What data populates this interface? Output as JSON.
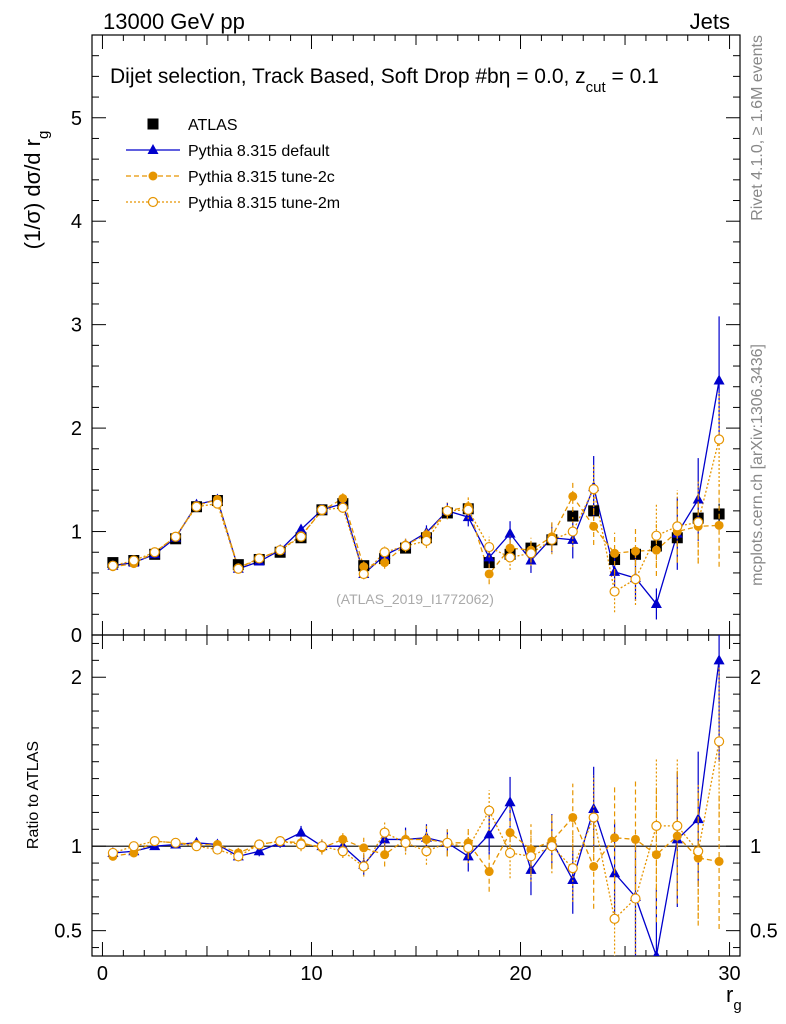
{
  "header": {
    "energy_label": "13000 GeV pp",
    "category_label": "Jets"
  },
  "side_notes": {
    "rivet": "Rivet 4.1.0, ≥ 1.6M events",
    "mcplots": "mcplots.cern.ch [arXiv:1306.3436]"
  },
  "analysis_id": "(ATLAS_2019_I1772062)",
  "colors": {
    "data": "#000000",
    "default": "#0000cc",
    "tune2c": "#e69500",
    "tune2m": "#e69500",
    "reference_line": "#000000"
  },
  "chart_data": [
    {
      "type": "scatter",
      "panel": "main",
      "title": "Dijet selection, Track Based, Soft Drop #b",
      "title_eta": "η = 0.0, z",
      "title_zcut_sub": "cut",
      "title_zcut_value": " = 0.1",
      "ylabel": "(1/σ) dσ/d r",
      "ylabel_sub": "g",
      "xlim": [
        -0.5,
        30.5
      ],
      "ylim": [
        0,
        5.8
      ],
      "yticks": [
        0,
        1,
        2,
        3,
        4,
        5
      ],
      "x": [
        0.5,
        1.5,
        2.5,
        3.5,
        4.5,
        5.5,
        6.5,
        7.5,
        8.5,
        9.5,
        10.5,
        11.5,
        12.5,
        13.5,
        14.5,
        15.5,
        16.5,
        17.5,
        18.5,
        19.5,
        20.5,
        21.5,
        22.5,
        23.5,
        24.5,
        25.5,
        26.5,
        27.5,
        28.5,
        29.5
      ],
      "legend": [
        "ATLAS",
        "Pythia 8.315 default",
        "Pythia 8.315 tune-2c",
        "Pythia 8.315 tune-2m"
      ],
      "series": [
        {
          "name": "ATLAS",
          "style": "data",
          "values": [
            0.7,
            0.72,
            0.78,
            0.93,
            1.24,
            1.3,
            0.68,
            0.73,
            0.8,
            0.94,
            1.21,
            1.27,
            0.67,
            0.74,
            0.84,
            0.94,
            1.18,
            1.22,
            0.7,
            0.78,
            0.84,
            0.92,
            1.15,
            1.2,
            0.73,
            0.78,
            0.86,
            0.94,
            1.13,
            1.17
          ],
          "errors": [
            0.02,
            0.02,
            0.02,
            0.02,
            0.02,
            0.02,
            0.02,
            0.02,
            0.02,
            0.03,
            0.03,
            0.03,
            0.03,
            0.03,
            0.03,
            0.03,
            0.04,
            0.04,
            0.05,
            0.05,
            0.05,
            0.05,
            0.06,
            0.06,
            0.06,
            0.07,
            0.07,
            0.08,
            0.09,
            0.1
          ]
        },
        {
          "name": "Pythia 8.315 default",
          "style": "default",
          "values": [
            0.67,
            0.7,
            0.78,
            0.94,
            1.26,
            1.31,
            0.64,
            0.71,
            0.82,
            1.02,
            1.21,
            1.27,
            0.59,
            0.77,
            0.87,
            0.99,
            1.2,
            1.14,
            0.75,
            0.98,
            0.72,
            0.94,
            0.92,
            1.43,
            0.61,
            0.55,
            0.3,
            0.98,
            1.31,
            2.46
          ],
          "errors": [
            0.02,
            0.02,
            0.02,
            0.02,
            0.03,
            0.03,
            0.03,
            0.03,
            0.03,
            0.04,
            0.04,
            0.05,
            0.05,
            0.06,
            0.06,
            0.07,
            0.08,
            0.09,
            0.1,
            0.12,
            0.12,
            0.14,
            0.18,
            0.3,
            0.2,
            0.22,
            0.15,
            0.35,
            0.4,
            0.62
          ]
        },
        {
          "name": "Pythia 8.315 tune-2c",
          "style": "tune2c",
          "values": [
            0.66,
            0.69,
            0.8,
            0.95,
            1.25,
            1.31,
            0.65,
            0.74,
            0.82,
            0.96,
            1.2,
            1.32,
            0.66,
            0.7,
            0.87,
            0.97,
            1.2,
            1.24,
            0.59,
            0.84,
            0.82,
            0.95,
            1.34,
            1.05,
            0.79,
            0.81,
            0.82,
            1.0,
            1.05,
            1.06
          ],
          "errors": [
            0.02,
            0.02,
            0.02,
            0.02,
            0.03,
            0.03,
            0.03,
            0.03,
            0.03,
            0.04,
            0.04,
            0.05,
            0.05,
            0.06,
            0.06,
            0.07,
            0.08,
            0.09,
            0.1,
            0.12,
            0.12,
            0.14,
            0.15,
            0.18,
            0.2,
            0.22,
            0.25,
            0.3,
            0.35,
            0.4
          ]
        },
        {
          "name": "Pythia 8.315 tune-2m",
          "style": "tune2m",
          "values": [
            0.67,
            0.72,
            0.8,
            0.95,
            1.24,
            1.27,
            0.64,
            0.74,
            0.82,
            0.95,
            1.21,
            1.23,
            0.59,
            0.8,
            0.86,
            0.91,
            1.2,
            1.21,
            0.85,
            0.75,
            0.79,
            0.92,
            1.0,
            1.41,
            0.42,
            0.54,
            0.96,
            1.05,
            1.09,
            1.89
          ],
          "errors": [
            0.02,
            0.02,
            0.02,
            0.02,
            0.03,
            0.03,
            0.03,
            0.03,
            0.03,
            0.04,
            0.04,
            0.05,
            0.05,
            0.06,
            0.06,
            0.07,
            0.08,
            0.09,
            0.1,
            0.12,
            0.12,
            0.14,
            0.15,
            0.25,
            0.2,
            0.25,
            0.3,
            0.35,
            0.4,
            0.45
          ]
        }
      ]
    },
    {
      "type": "scatter",
      "panel": "ratio",
      "xlabel": "r",
      "xlabel_sub": "g",
      "ylabel": "Ratio to ATLAS",
      "xlim": [
        -0.5,
        30.5
      ],
      "ylim": [
        0.35,
        2.25
      ],
      "xticks": [
        0,
        10,
        20,
        30
      ],
      "yticks": [
        0.5,
        1,
        2
      ],
      "reference": 1.0,
      "x": [
        0.5,
        1.5,
        2.5,
        3.5,
        4.5,
        5.5,
        6.5,
        7.5,
        8.5,
        9.5,
        10.5,
        11.5,
        12.5,
        13.5,
        14.5,
        15.5,
        16.5,
        17.5,
        18.5,
        19.5,
        20.5,
        21.5,
        22.5,
        23.5,
        24.5,
        25.5,
        26.5,
        27.5,
        28.5,
        29.5
      ],
      "series": [
        {
          "name": "Pythia 8.315 default",
          "style": "default",
          "values": [
            0.96,
            0.97,
            1.0,
            1.01,
            1.02,
            1.01,
            0.94,
            0.97,
            1.02,
            1.08,
            1.0,
            1.0,
            0.89,
            1.04,
            1.04,
            1.05,
            1.02,
            0.94,
            1.07,
            1.26,
            0.86,
            1.03,
            0.8,
            1.22,
            0.84,
            0.7,
            0.35,
            1.04,
            1.16,
            2.1
          ],
          "errors": [
            0.02,
            0.02,
            0.02,
            0.02,
            0.02,
            0.02,
            0.03,
            0.03,
            0.03,
            0.04,
            0.04,
            0.04,
            0.06,
            0.07,
            0.07,
            0.08,
            0.08,
            0.09,
            0.12,
            0.15,
            0.15,
            0.16,
            0.2,
            0.25,
            0.3,
            0.35,
            0.4,
            0.4,
            0.4,
            0.6
          ]
        },
        {
          "name": "Pythia 8.315 tune-2c",
          "style": "tune2c",
          "values": [
            0.94,
            0.96,
            1.03,
            1.02,
            1.01,
            1.01,
            0.96,
            1.01,
            1.03,
            1.02,
            0.99,
            1.04,
            0.99,
            0.95,
            1.04,
            1.04,
            1.02,
            1.02,
            0.85,
            1.08,
            0.98,
            1.03,
            1.17,
            0.88,
            1.05,
            1.04,
            0.95,
            1.06,
            0.93,
            0.91
          ],
          "errors": [
            0.02,
            0.02,
            0.02,
            0.02,
            0.02,
            0.02,
            0.03,
            0.03,
            0.03,
            0.04,
            0.04,
            0.04,
            0.06,
            0.07,
            0.07,
            0.08,
            0.08,
            0.09,
            0.12,
            0.15,
            0.15,
            0.16,
            0.2,
            0.25,
            0.3,
            0.35,
            0.4,
            0.4,
            0.4,
            0.4
          ]
        },
        {
          "name": "Pythia 8.315 tune-2m",
          "style": "tune2m",
          "values": [
            0.96,
            1.0,
            1.03,
            1.02,
            1.0,
            0.98,
            0.94,
            1.01,
            1.03,
            1.01,
            1.0,
            0.97,
            0.88,
            1.08,
            1.02,
            0.97,
            1.02,
            0.99,
            1.21,
            0.96,
            0.94,
            1.0,
            0.87,
            1.17,
            0.57,
            0.69,
            1.12,
            1.12,
            0.97,
            1.62
          ],
          "errors": [
            0.02,
            0.02,
            0.02,
            0.02,
            0.02,
            0.02,
            0.03,
            0.03,
            0.03,
            0.04,
            0.04,
            0.04,
            0.06,
            0.07,
            0.07,
            0.08,
            0.08,
            0.09,
            0.12,
            0.15,
            0.15,
            0.16,
            0.2,
            0.25,
            0.3,
            0.35,
            0.4,
            0.4,
            0.4,
            0.45
          ]
        }
      ]
    }
  ]
}
